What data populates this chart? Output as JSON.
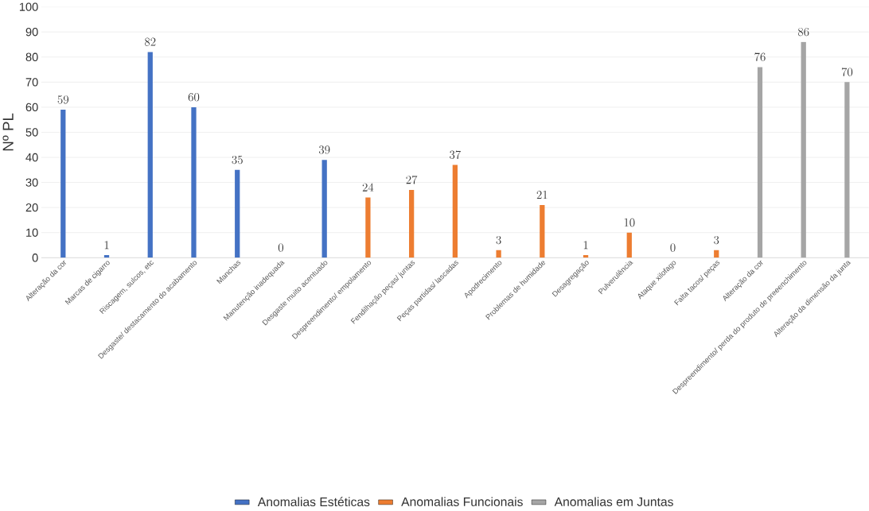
{
  "chart_data": {
    "type": "bar",
    "ylabel": "Nº PL",
    "categories": [
      "Alteração da cor",
      "Marcas de cigarro",
      "Riscagem, sulcos, etc",
      "Desgaste/ destacamento do acabamento",
      "Manchas",
      "Manutenção inadequada",
      "Desgaste muito acentuado",
      "Despreendimento/ empolamento",
      "Fendilhação peças/ juntas",
      "Peças partidas/ lascadas",
      "Apodrecimento",
      "Problemas de humidade",
      "Desagregação",
      "Pulverulência",
      "Ataque xilofago",
      "Falta tacos/ peças",
      "Alteração da cor",
      "Despreendimento/ perda do produto de preeenchimento",
      "Alteração da dimensão da junta"
    ],
    "series": [
      {
        "name": "Anomalias Estéticas",
        "color": "#4472c4",
        "values": [
          59,
          1,
          82,
          60,
          35,
          0,
          39,
          null,
          null,
          null,
          null,
          null,
          null,
          null,
          null,
          null,
          null,
          null,
          null
        ]
      },
      {
        "name": "Anomalias Funcionais",
        "color": "#ed7d31",
        "values": [
          null,
          null,
          null,
          null,
          null,
          null,
          null,
          24,
          27,
          37,
          3,
          21,
          1,
          10,
          0,
          3,
          null,
          null,
          null
        ]
      },
      {
        "name": "Anomalias em Juntas",
        "color": "#a5a5a5",
        "values": [
          null,
          null,
          null,
          null,
          null,
          null,
          null,
          null,
          null,
          null,
          null,
          null,
          null,
          null,
          null,
          null,
          76,
          86,
          70
        ]
      }
    ],
    "ylim": [
      0,
      100
    ],
    "yticks": [
      0,
      10,
      20,
      30,
      40,
      50,
      60,
      70,
      80,
      90,
      100
    ],
    "grid": "y",
    "legend": "bottom",
    "data_labels": true
  }
}
